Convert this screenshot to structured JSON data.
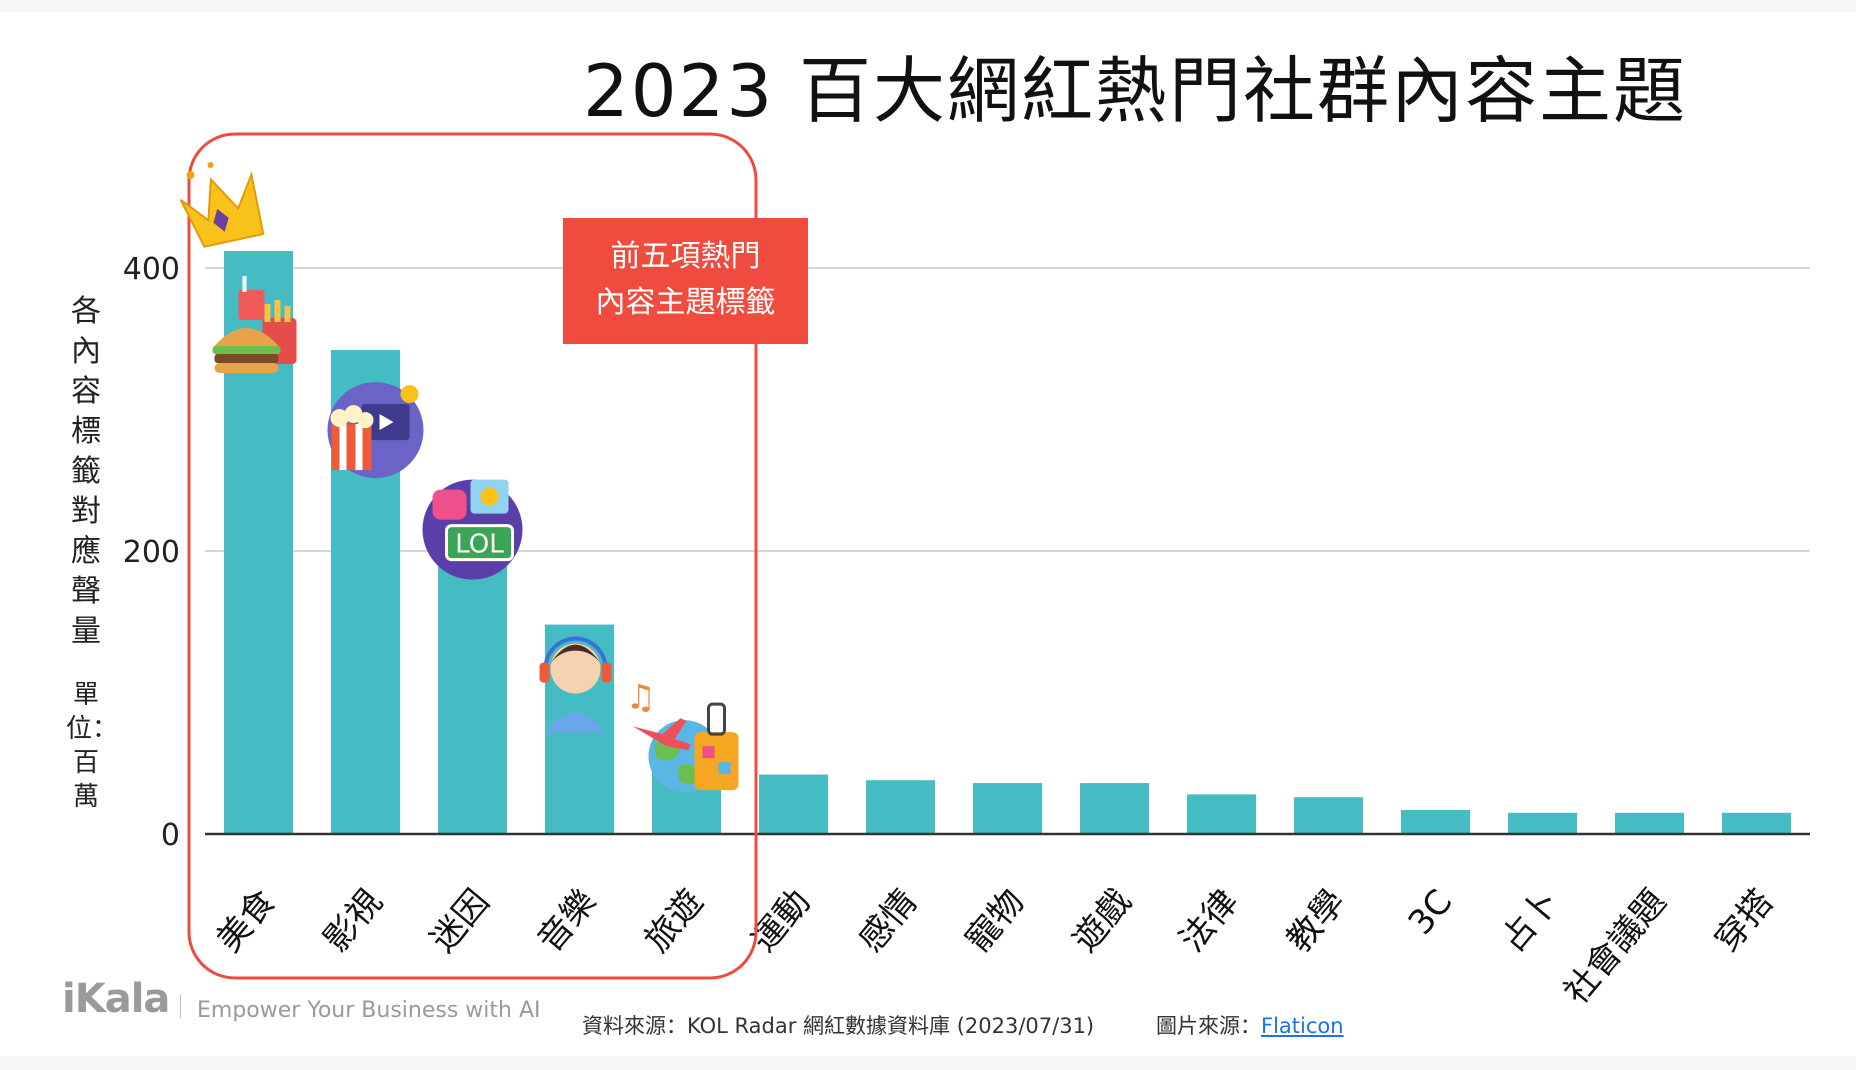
{
  "chart_data": {
    "type": "bar",
    "title": "2023 百大網紅熱門社群內容主題",
    "ylabel": "各內容標籤對應聲量",
    "ylabel_unit": "單位：百萬",
    "ylim": [
      0,
      460
    ],
    "yticks": [
      0,
      200,
      400
    ],
    "grid": true,
    "categories": [
      "美食",
      "影視",
      "迷因",
      "音樂",
      "旅遊",
      "運動",
      "感情",
      "寵物",
      "遊戲",
      "法律",
      "教學",
      "3C",
      "占卜",
      "社會議題",
      "穿搭"
    ],
    "values": [
      412,
      342,
      225,
      148,
      55,
      42,
      38,
      36,
      36,
      28,
      26,
      17,
      15,
      15,
      15
    ],
    "highlight": {
      "count": 5,
      "label_line1": "前五項熱門",
      "label_line2": "內容主題標籤"
    }
  },
  "colors": {
    "bar": "#45bcc4",
    "highlight_border": "#ee4b3f",
    "callout_bg": "#ef4b3f",
    "grid": "#d6d6d6",
    "axis": "#333333"
  },
  "icons": [
    "crown-icon",
    "burger-fries-icon",
    "popcorn-movie-icon",
    "lol-meme-icon",
    "headphone-person-icon",
    "travel-luggage-icon"
  ],
  "footer": {
    "brand": "iKala",
    "tagline": "Empower Your Business with AI",
    "source": "資料來源：KOL Radar 網紅數據資料庫 (2023/07/31)",
    "image_source_label": "圖片來源：",
    "image_source_link": "Flaticon"
  }
}
